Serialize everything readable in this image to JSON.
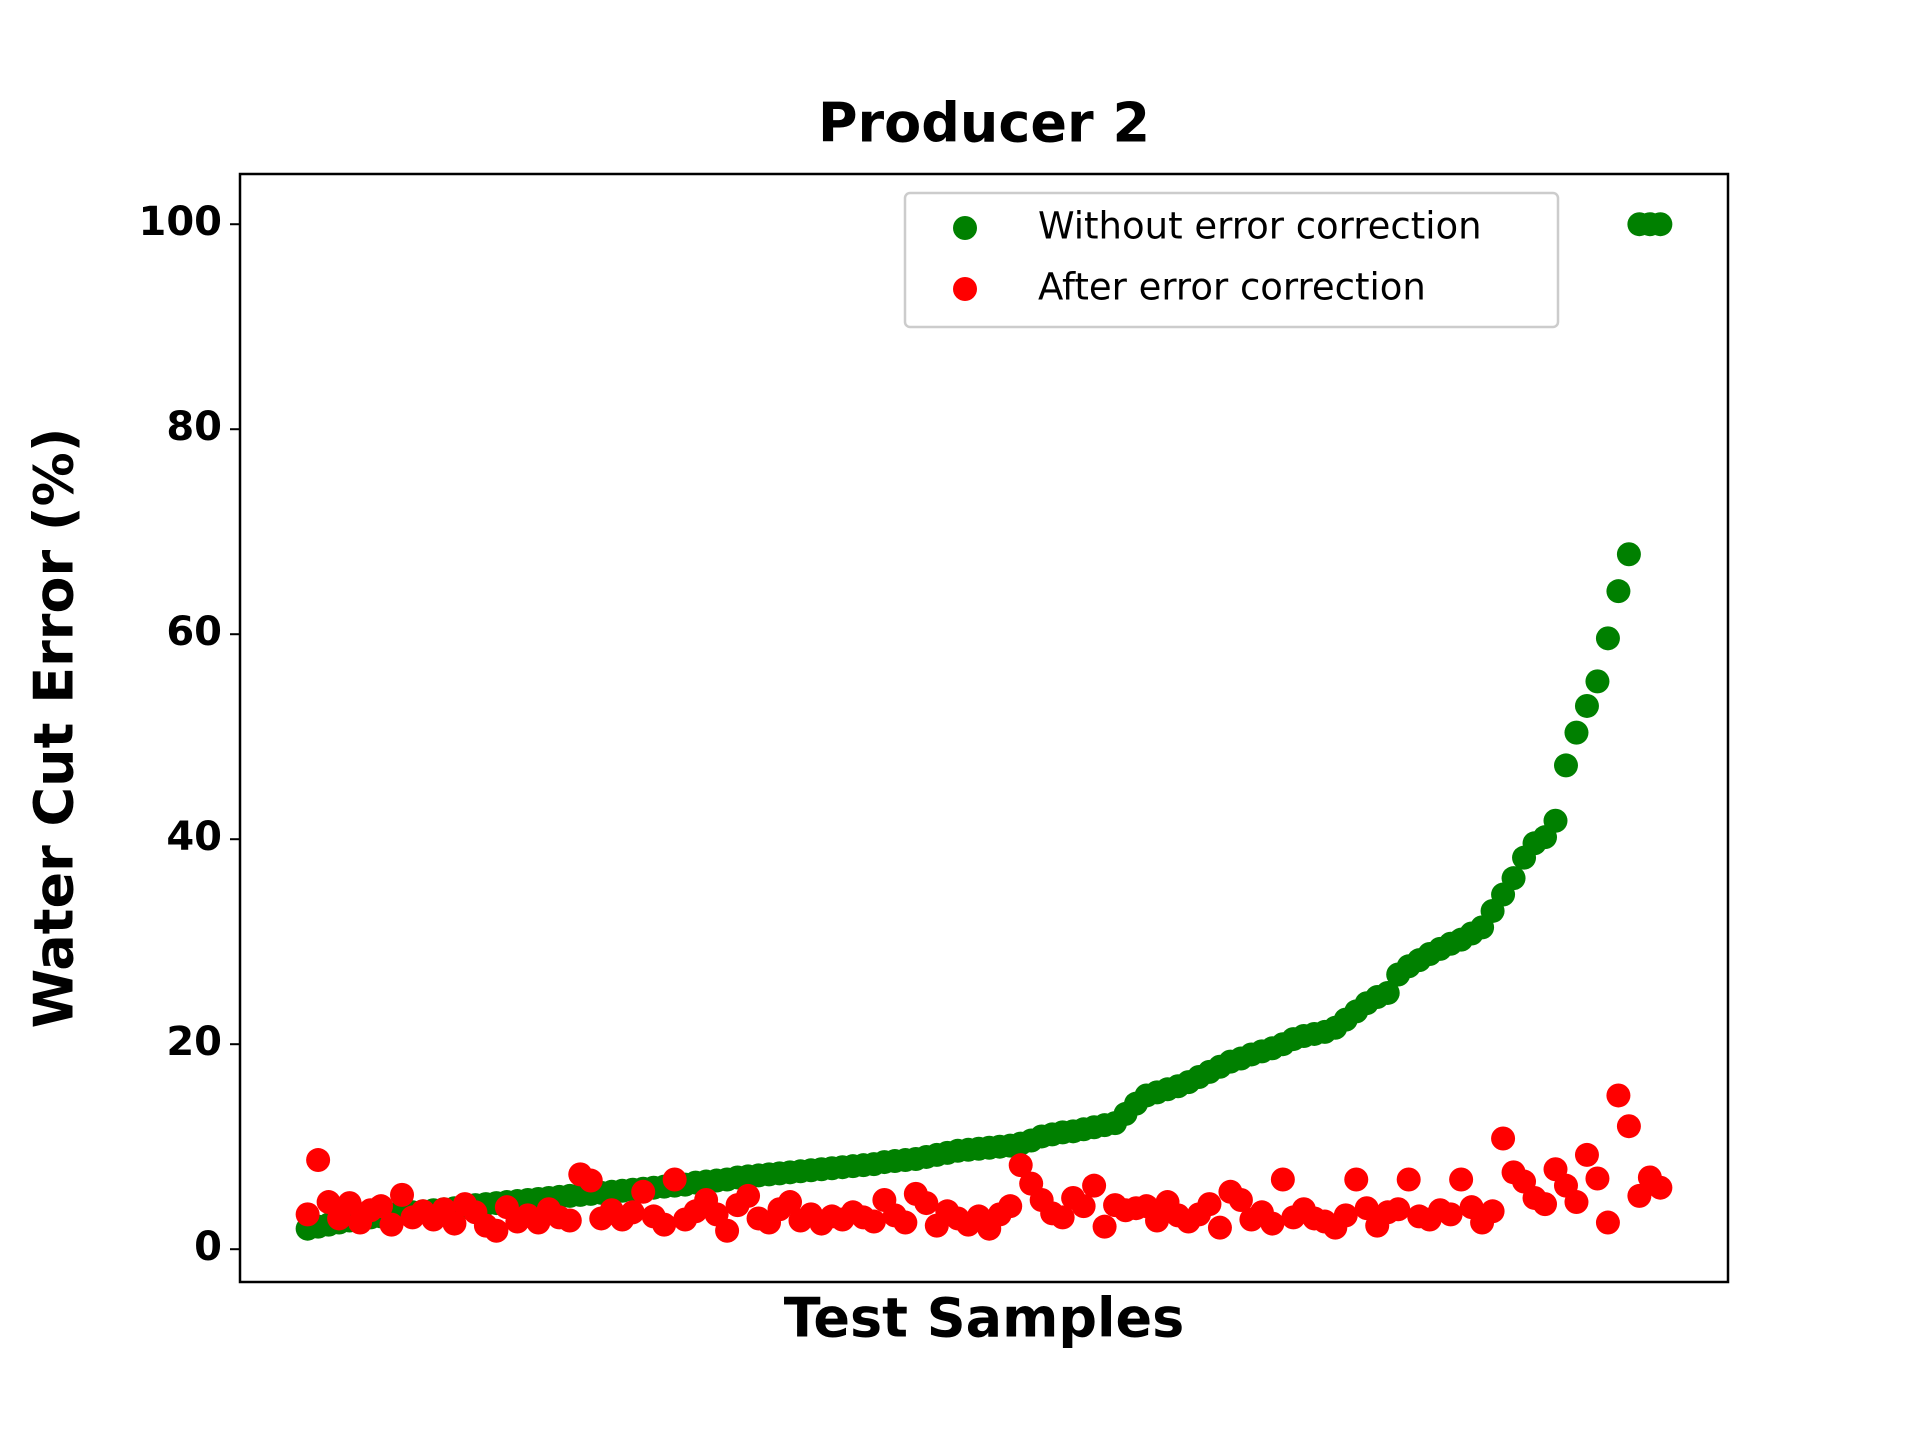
{
  "chart_data": {
    "type": "scatter",
    "title": "Producer 2",
    "xlabel": "Test Samples",
    "ylabel": "Water Cut Error (%)",
    "x": [
      0,
      1,
      2,
      3,
      4,
      5,
      6,
      7,
      8,
      9,
      10,
      11,
      12,
      13,
      14,
      15,
      16,
      17,
      18,
      19,
      20,
      21,
      22,
      23,
      24,
      25,
      26,
      27,
      28,
      29,
      30,
      31,
      32,
      33,
      34,
      35,
      36,
      37,
      38,
      39,
      40,
      41,
      42,
      43,
      44,
      45,
      46,
      47,
      48,
      49,
      50,
      51,
      52,
      53,
      54,
      55,
      56,
      57,
      58,
      59,
      60,
      61,
      62,
      63,
      64,
      65,
      66,
      67,
      68,
      69,
      70,
      71,
      72,
      73,
      74,
      75,
      76,
      77,
      78,
      79,
      80,
      81,
      82,
      83,
      84,
      85,
      86,
      87,
      88,
      89,
      90,
      91,
      92,
      93,
      94,
      95,
      96,
      97,
      98,
      99,
      100,
      101,
      102,
      103,
      104,
      105,
      106,
      107,
      108,
      109,
      110,
      111,
      112,
      113,
      114,
      115,
      116,
      117,
      118,
      119,
      120,
      121,
      122,
      123,
      124,
      125,
      126,
      127,
      128,
      129
    ],
    "series": [
      {
        "name": "Without error correction",
        "color": "#008000",
        "values": [
          2.0,
          2.2,
          2.4,
          2.6,
          2.8,
          3.0,
          3.1,
          3.2,
          3.4,
          3.5,
          3.6,
          3.7,
          3.8,
          3.9,
          4.0,
          4.1,
          4.3,
          4.4,
          4.5,
          4.6,
          4.7,
          4.8,
          4.9,
          5.0,
          5.1,
          5.2,
          5.3,
          5.4,
          5.5,
          5.6,
          5.7,
          5.8,
          5.9,
          6.0,
          6.1,
          6.2,
          6.3,
          6.5,
          6.6,
          6.7,
          6.8,
          7.0,
          7.1,
          7.2,
          7.3,
          7.4,
          7.5,
          7.6,
          7.7,
          7.8,
          7.9,
          8.0,
          8.1,
          8.2,
          8.3,
          8.5,
          8.6,
          8.7,
          8.8,
          9.0,
          9.2,
          9.4,
          9.6,
          9.7,
          9.8,
          9.9,
          10.0,
          10.1,
          10.3,
          10.6,
          11.0,
          11.2,
          11.4,
          11.5,
          11.7,
          11.9,
          12.1,
          12.3,
          13.2,
          14.2,
          15.0,
          15.3,
          15.6,
          15.9,
          16.3,
          16.8,
          17.3,
          17.8,
          18.3,
          18.6,
          19.0,
          19.3,
          19.6,
          20.0,
          20.5,
          20.8,
          21.0,
          21.2,
          21.6,
          22.4,
          23.2,
          24.0,
          24.6,
          25.0,
          26.8,
          27.6,
          28.2,
          28.8,
          29.3,
          29.8,
          30.2,
          30.8,
          31.4,
          33.0,
          34.6,
          36.2,
          38.2,
          39.6,
          40.2,
          41.8,
          47.2,
          50.4,
          53.0,
          55.4,
          59.6,
          64.2,
          67.8,
          100,
          100,
          100
        ]
      },
      {
        "name": "After error correction",
        "color": "#ff0000",
        "values": [
          3.4,
          8.7,
          4.6,
          3.0,
          4.5,
          2.6,
          3.8,
          4.2,
          2.4,
          5.3,
          3.1,
          3.7,
          2.9,
          3.9,
          2.5,
          4.4,
          3.6,
          2.3,
          1.8,
          4.1,
          2.7,
          3.3,
          2.6,
          3.9,
          3.1,
          2.8,
          7.3,
          6.7,
          3.0,
          3.8,
          2.9,
          3.6,
          5.6,
          3.2,
          2.4,
          6.8,
          2.9,
          3.7,
          4.8,
          3.4,
          1.8,
          4.3,
          5.2,
          3.0,
          2.6,
          3.9,
          4.6,
          2.8,
          3.4,
          2.5,
          3.2,
          2.9,
          3.6,
          3.1,
          2.7,
          4.8,
          3.3,
          2.6,
          5.4,
          4.5,
          2.3,
          3.7,
          3.0,
          2.4,
          3.2,
          2.0,
          3.4,
          4.2,
          8.2,
          6.4,
          4.8,
          3.5,
          3.1,
          5.0,
          4.2,
          6.2,
          2.2,
          4.3,
          3.8,
          4.0,
          4.2,
          2.8,
          4.6,
          3.3,
          2.7,
          3.4,
          4.4,
          2.1,
          5.6,
          4.8,
          2.9,
          3.6,
          2.5,
          6.8,
          3.1,
          3.9,
          3.0,
          2.7,
          2.1,
          3.3,
          6.8,
          4.0,
          2.3,
          3.6,
          3.9,
          6.8,
          3.2,
          2.9,
          3.8,
          3.4,
          6.8,
          4.1,
          2.6,
          3.7,
          10.8,
          7.5,
          6.6,
          5.0,
          4.4,
          7.8,
          6.2,
          4.6,
          9.2,
          6.9,
          2.6,
          15.0,
          12.0,
          5.2,
          7.0,
          6.0
        ]
      }
    ],
    "xlim": [
      -6.45,
      135.45
    ],
    "ylim": [
      -3.2,
      104.9
    ],
    "yticks": [
      0,
      20,
      40,
      60,
      80,
      100
    ],
    "legend": "upper right"
  }
}
